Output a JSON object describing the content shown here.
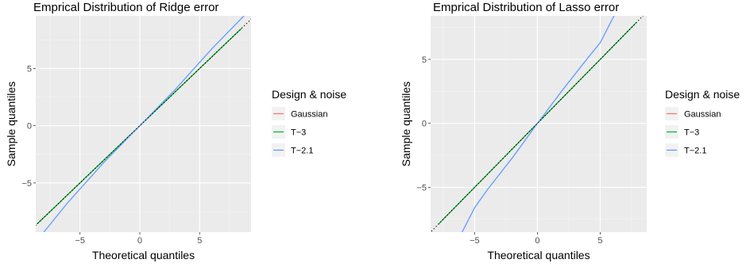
{
  "chart_data": [
    {
      "type": "line",
      "title": "Emprical Distribution of Ridge error",
      "xlabel": "Theoretical quantiles",
      "ylabel": "Sample quantiles",
      "xlim": [
        -8.7,
        9.3
      ],
      "ylim": [
        -9.3,
        9.6
      ],
      "xticks": [
        -5,
        0,
        5
      ],
      "yticks": [
        -5,
        0,
        5
      ],
      "xtick_labels": [
        "−5",
        "0",
        "5"
      ],
      "ytick_labels": [
        "−5",
        "0",
        "5"
      ],
      "grid": true,
      "legend": {
        "title": "Design & noise",
        "position": "right"
      },
      "reference_line": {
        "style": "dotted",
        "color": "#000000",
        "slope": 1,
        "intercept": 0
      },
      "series": [
        {
          "name": "Gaussian",
          "color": "#F8766D",
          "x": [
            -8.5,
            -4,
            0,
            4,
            8.3
          ],
          "y": [
            -8.5,
            -4,
            0,
            4,
            8.3
          ]
        },
        {
          "name": "T−3",
          "color": "#00BA38",
          "x": [
            -8.6,
            -4,
            0,
            4,
            8.5
          ],
          "y": [
            -8.6,
            -4,
            0,
            4,
            8.5
          ]
        },
        {
          "name": "T−2.1",
          "color": "#619CFF",
          "x": [
            -8.1,
            -6,
            -3,
            0,
            3,
            6,
            8.7
          ],
          "y": [
            -9.4,
            -6.7,
            -3.2,
            0,
            3.2,
            6.7,
            9.6
          ]
        }
      ]
    },
    {
      "type": "line",
      "title": "Emprical Distribution of Lasso error",
      "xlabel": "Theoretical quantiles",
      "ylabel": "Sample quantiles",
      "xlim": [
        -8.5,
        8.7
      ],
      "ylim": [
        -8.5,
        8.4
      ],
      "xticks": [
        -5,
        0,
        5
      ],
      "yticks": [
        -5,
        0,
        5
      ],
      "xtick_labels": [
        "−5",
        "0",
        "5"
      ],
      "ytick_labels": [
        "−5",
        "0",
        "5"
      ],
      "grid": true,
      "legend": {
        "title": "Design & noise",
        "position": "right"
      },
      "reference_line": {
        "style": "dotted",
        "color": "#000000",
        "slope": 1,
        "intercept": 0
      },
      "series": [
        {
          "name": "Gaussian",
          "color": "#F8766D",
          "x": [
            -7.6,
            -4,
            0,
            4,
            7.7
          ],
          "y": [
            -7.6,
            -4,
            0,
            4,
            7.7
          ]
        },
        {
          "name": "T−3",
          "color": "#00BA38",
          "x": [
            -7.9,
            -4,
            0,
            4,
            7.9
          ],
          "y": [
            -7.9,
            -4,
            0,
            4,
            7.9
          ]
        },
        {
          "name": "T−2.1",
          "color": "#619CFF",
          "x": [
            -6.1,
            -5,
            -4,
            -2,
            0,
            2,
            4,
            5,
            6.2
          ],
          "y": [
            -8.7,
            -6.6,
            -5.2,
            -2.7,
            0,
            2.6,
            5.1,
            6.3,
            8.6
          ]
        }
      ]
    }
  ]
}
